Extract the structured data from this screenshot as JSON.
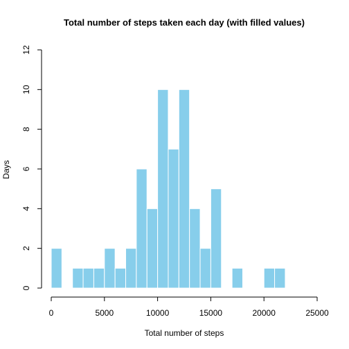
{
  "chart_data": {
    "type": "bar",
    "title": "Total number of steps taken each day (with filled values)",
    "xlabel": "Total number of steps",
    "ylabel": "Days",
    "xlim": [
      0,
      25000
    ],
    "ylim": [
      0,
      12
    ],
    "x_ticks": [
      "0",
      "5000",
      "10000",
      "15000",
      "20000",
      "25000"
    ],
    "y_ticks": [
      "0",
      "2",
      "4",
      "6",
      "8",
      "10",
      "12"
    ],
    "bin_width": 1000,
    "bin_starts": [
      0,
      1000,
      2000,
      3000,
      4000,
      5000,
      6000,
      7000,
      8000,
      9000,
      10000,
      11000,
      12000,
      13000,
      14000,
      15000,
      16000,
      17000,
      18000,
      19000,
      20000,
      21000
    ],
    "values": [
      2,
      0,
      1,
      1,
      1,
      2,
      1,
      2,
      6,
      4,
      10,
      7,
      10,
      4,
      2,
      5,
      0,
      1,
      0,
      0,
      1,
      1
    ],
    "bar_color": "#87CEEB",
    "grid": false
  }
}
